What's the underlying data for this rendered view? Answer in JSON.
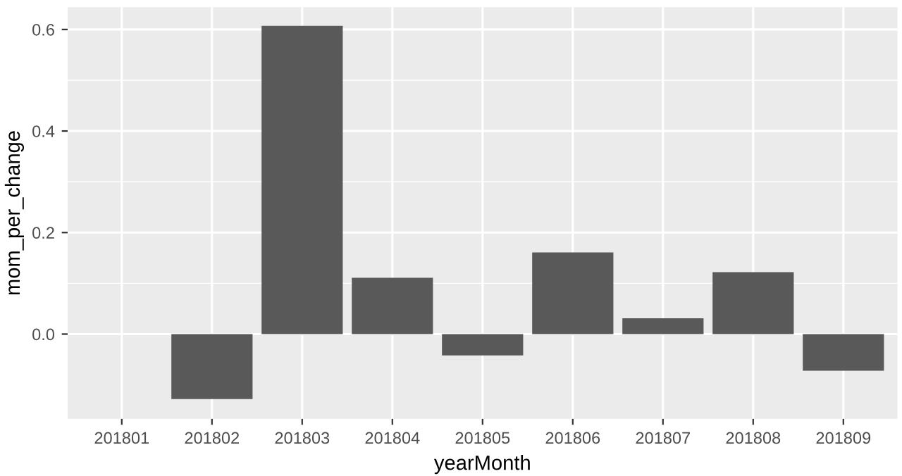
{
  "chart_data": {
    "type": "bar",
    "xlabel": "yearMonth",
    "ylabel": "mom_per_change",
    "categories": [
      "201801",
      "201802",
      "201803",
      "201804",
      "201805",
      "201806",
      "201807",
      "201808",
      "201809"
    ],
    "values": [
      null,
      -0.128,
      0.607,
      0.111,
      -0.042,
      0.161,
      0.031,
      0.122,
      -0.072
    ],
    "color": "#595959",
    "ylim": [
      -0.167,
      0.644
    ],
    "yticks": [
      {
        "value": 0,
        "label": "0.0"
      },
      0.2,
      0.4,
      0.6
    ],
    "grid": true
  }
}
